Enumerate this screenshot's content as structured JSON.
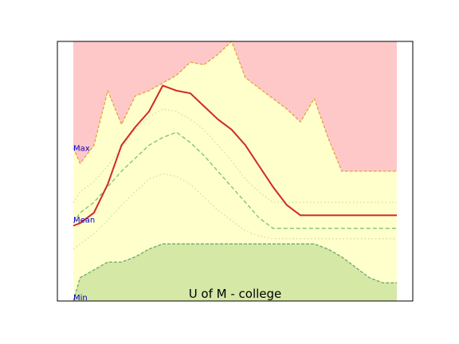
{
  "chart_data": {
    "type": "area",
    "title": "U of M - college",
    "xlabel": "",
    "ylabel": "",
    "xlim": [
      0,
      24
    ],
    "ylim": [
      0,
      100
    ],
    "grid": false,
    "axis_ticks": false,
    "x": [
      0,
      0.5,
      1.5,
      2.5,
      3.5,
      4.5,
      5.5,
      6.5,
      7.5,
      8.5,
      9.5,
      10.5,
      11.5,
      12.5,
      13.5,
      14.5,
      15.5,
      16.5,
      17.5,
      18.5,
      19.5,
      20.5,
      21.5,
      22.5,
      23.5
    ],
    "bands": [
      {
        "name": "Max",
        "role": "max",
        "values": [
          59,
          53,
          60,
          81,
          68,
          79,
          81,
          84,
          87,
          92,
          91,
          95,
          100,
          86,
          82,
          78,
          74,
          69,
          78,
          63,
          50,
          50,
          50,
          50,
          50
        ],
        "line_color": "#E8A040",
        "fill_above": "#FFC8C8",
        "fill_below": "#FFFFCC"
      },
      {
        "name": "Mean",
        "role": "mean",
        "values": [
          29,
          30,
          34,
          45,
          60,
          67,
          73,
          83,
          81,
          80,
          75,
          70,
          66,
          60,
          52,
          44,
          37,
          33,
          33,
          33,
          33,
          33,
          33,
          33,
          33
        ],
        "line_color": "#D02828"
      },
      {
        "name": "Min",
        "role": "min",
        "values": [
          0,
          9,
          12,
          15,
          15,
          17,
          20,
          22,
          22,
          22,
          22,
          22,
          22,
          22,
          22,
          22,
          22,
          22,
          22,
          20,
          17,
          13,
          9,
          7,
          7
        ],
        "line_color": "#6AAA6A",
        "fill_below": "#D6E8A6"
      }
    ],
    "dashed_lines": [
      {
        "color": "#7CC070",
        "values": [
          30,
          34,
          38,
          44,
          50,
          55,
          60,
          63,
          65,
          61,
          56,
          50,
          44,
          38,
          32,
          28,
          28,
          28,
          28,
          28,
          28,
          28,
          28,
          28,
          28
        ]
      }
    ],
    "dotted_lines": [
      {
        "color": "#D8D8A0",
        "values": [
          38,
          42,
          46,
          52,
          59,
          66,
          71,
          74,
          73,
          70,
          66,
          60,
          54,
          47,
          42,
          38,
          38,
          38,
          38,
          38,
          38,
          38,
          38,
          38,
          38
        ]
      },
      {
        "color": "#D8D8A0",
        "values": [
          20,
          22,
          26,
          31,
          37,
          42,
          47,
          49,
          48,
          45,
          40,
          35,
          31,
          27,
          25,
          24,
          24,
          24,
          24,
          24,
          24,
          24,
          24,
          24,
          24
        ]
      }
    ],
    "band_labels": [
      "Max",
      "Mean",
      "Min"
    ],
    "colors": {
      "label_text": "#0000CC",
      "frame": "#000000",
      "above_max": "#FFC8C8",
      "below_max": "#FFFFCC",
      "below_min": "#D6E8A6"
    }
  }
}
